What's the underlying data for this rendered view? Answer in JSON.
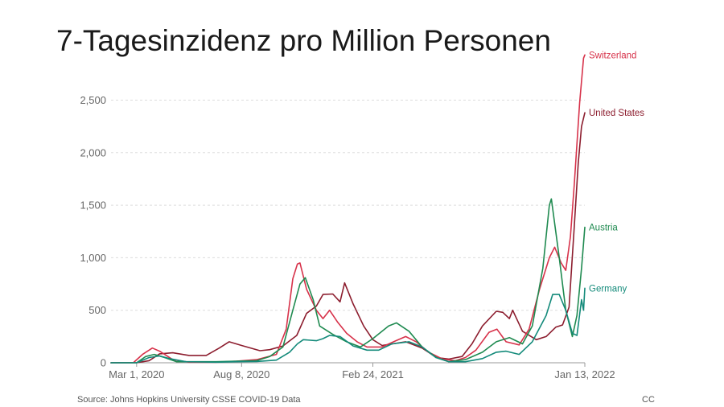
{
  "page": {
    "title": "7-Tagesinzidenz pro Million Personen",
    "source": "Source: Johns Hopkins University CSSE COVID-19 Data",
    "license": "CC"
  },
  "chart_data": {
    "type": "line",
    "title": "7-Tagesinzidenz pro Million Personen",
    "xlabel": "",
    "ylabel": "",
    "x_type": "date",
    "xlim": [
      "2020-01-22",
      "2022-01-13"
    ],
    "ylim": [
      0,
      2900
    ],
    "y_ticks": [
      0,
      500,
      1000,
      1500,
      2000,
      2500
    ],
    "y_tick_labels": [
      "0",
      "500",
      "1,000",
      "1,500",
      "2,000",
      "2,500"
    ],
    "x_ticks": [
      "2020-03-01",
      "2020-08-08",
      "2021-02-24",
      "2022-01-13"
    ],
    "x_tick_labels": [
      "Mar 1, 2020",
      "Aug 8, 2020",
      "Feb 24, 2021",
      "Jan 13, 2022"
    ],
    "grid": "horizontal",
    "legend": "line-end labels",
    "series": [
      {
        "name": "United States",
        "color": "#8c1d2e",
        "points": [
          [
            "2020-01-22",
            0
          ],
          [
            "2020-03-01",
            0
          ],
          [
            "2020-03-20",
            20
          ],
          [
            "2020-04-05",
            85
          ],
          [
            "2020-04-25",
            95
          ],
          [
            "2020-05-20",
            70
          ],
          [
            "2020-06-15",
            70
          ],
          [
            "2020-07-05",
            140
          ],
          [
            "2020-07-20",
            200
          ],
          [
            "2020-08-08",
            165
          ],
          [
            "2020-09-05",
            115
          ],
          [
            "2020-09-20",
            125
          ],
          [
            "2020-10-10",
            160
          ],
          [
            "2020-10-31",
            260
          ],
          [
            "2020-11-15",
            470
          ],
          [
            "2020-11-30",
            540
          ],
          [
            "2020-12-10",
            650
          ],
          [
            "2020-12-25",
            655
          ],
          [
            "2021-01-05",
            580
          ],
          [
            "2021-01-12",
            760
          ],
          [
            "2021-01-25",
            560
          ],
          [
            "2021-02-10",
            350
          ],
          [
            "2021-02-24",
            220
          ],
          [
            "2021-03-10",
            165
          ],
          [
            "2021-04-15",
            200
          ],
          [
            "2021-05-10",
            140
          ],
          [
            "2021-06-01",
            50
          ],
          [
            "2021-06-20",
            35
          ],
          [
            "2021-07-10",
            60
          ],
          [
            "2021-07-25",
            180
          ],
          [
            "2021-08-10",
            350
          ],
          [
            "2021-08-31",
            490
          ],
          [
            "2021-09-10",
            480
          ],
          [
            "2021-09-20",
            420
          ],
          [
            "2021-09-25",
            500
          ],
          [
            "2021-10-10",
            300
          ],
          [
            "2021-10-31",
            220
          ],
          [
            "2021-11-15",
            250
          ],
          [
            "2021-11-30",
            340
          ],
          [
            "2021-12-10",
            360
          ],
          [
            "2021-12-20",
            530
          ],
          [
            "2021-12-28",
            1300
          ],
          [
            "2022-01-03",
            1900
          ],
          [
            "2022-01-08",
            2250
          ],
          [
            "2022-01-13",
            2380
          ]
        ]
      },
      {
        "name": "Switzerland",
        "color": "#d7324a",
        "points": [
          [
            "2020-01-22",
            0
          ],
          [
            "2020-02-25",
            0
          ],
          [
            "2020-03-10",
            80
          ],
          [
            "2020-03-25",
            140
          ],
          [
            "2020-04-05",
            110
          ],
          [
            "2020-04-25",
            30
          ],
          [
            "2020-05-20",
            5
          ],
          [
            "2020-06-30",
            5
          ],
          [
            "2020-07-31",
            15
          ],
          [
            "2020-08-31",
            30
          ],
          [
            "2020-09-30",
            80
          ],
          [
            "2020-10-15",
            320
          ],
          [
            "2020-10-25",
            800
          ],
          [
            "2020-11-01",
            940
          ],
          [
            "2020-11-05",
            950
          ],
          [
            "2020-11-15",
            700
          ],
          [
            "2020-11-30",
            500
          ],
          [
            "2020-12-10",
            420
          ],
          [
            "2020-12-20",
            500
          ],
          [
            "2021-01-01",
            390
          ],
          [
            "2021-01-15",
            280
          ],
          [
            "2021-01-31",
            200
          ],
          [
            "2021-02-15",
            150
          ],
          [
            "2021-03-10",
            150
          ],
          [
            "2021-03-31",
            210
          ],
          [
            "2021-04-15",
            250
          ],
          [
            "2021-05-01",
            200
          ],
          [
            "2021-05-20",
            100
          ],
          [
            "2021-06-10",
            35
          ],
          [
            "2021-06-30",
            20
          ],
          [
            "2021-07-15",
            50
          ],
          [
            "2021-07-31",
            120
          ],
          [
            "2021-08-20",
            290
          ],
          [
            "2021-09-01",
            320
          ],
          [
            "2021-09-15",
            200
          ],
          [
            "2021-10-05",
            170
          ],
          [
            "2021-10-20",
            320
          ],
          [
            "2021-11-05",
            700
          ],
          [
            "2021-11-20",
            1000
          ],
          [
            "2021-11-28",
            1100
          ],
          [
            "2021-12-08",
            950
          ],
          [
            "2021-12-15",
            880
          ],
          [
            "2021-12-22",
            1200
          ],
          [
            "2021-12-28",
            1700
          ],
          [
            "2022-01-05",
            2470
          ],
          [
            "2022-01-11",
            2900
          ],
          [
            "2022-01-13",
            2930
          ]
        ]
      },
      {
        "name": "Austria",
        "color": "#1f8a50",
        "points": [
          [
            "2020-01-22",
            0
          ],
          [
            "2020-03-01",
            0
          ],
          [
            "2020-03-15",
            60
          ],
          [
            "2020-03-28",
            80
          ],
          [
            "2020-04-10",
            55
          ],
          [
            "2020-05-01",
            10
          ],
          [
            "2020-06-30",
            10
          ],
          [
            "2020-07-31",
            15
          ],
          [
            "2020-08-31",
            20
          ],
          [
            "2020-09-20",
            60
          ],
          [
            "2020-10-10",
            150
          ],
          [
            "2020-10-25",
            500
          ],
          [
            "2020-11-05",
            750
          ],
          [
            "2020-11-13",
            810
          ],
          [
            "2020-11-25",
            600
          ],
          [
            "2020-12-05",
            350
          ],
          [
            "2020-12-25",
            270
          ],
          [
            "2021-01-15",
            200
          ],
          [
            "2021-02-05",
            150
          ],
          [
            "2021-02-24",
            230
          ],
          [
            "2021-03-20",
            350
          ],
          [
            "2021-04-01",
            380
          ],
          [
            "2021-04-20",
            300
          ],
          [
            "2021-05-10",
            150
          ],
          [
            "2021-06-01",
            50
          ],
          [
            "2021-06-20",
            10
          ],
          [
            "2021-07-15",
            30
          ],
          [
            "2021-08-10",
            100
          ],
          [
            "2021-08-31",
            200
          ],
          [
            "2021-09-20",
            240
          ],
          [
            "2021-10-10",
            180
          ],
          [
            "2021-10-25",
            350
          ],
          [
            "2021-11-10",
            900
          ],
          [
            "2021-11-20",
            1500
          ],
          [
            "2021-11-23",
            1560
          ],
          [
            "2021-12-05",
            1000
          ],
          [
            "2021-12-15",
            500
          ],
          [
            "2021-12-25",
            250
          ],
          [
            "2022-01-01",
            450
          ],
          [
            "2022-01-08",
            900
          ],
          [
            "2022-01-13",
            1290
          ]
        ]
      },
      {
        "name": "Germany",
        "color": "#138a7a",
        "points": [
          [
            "2020-01-22",
            0
          ],
          [
            "2020-03-01",
            0
          ],
          [
            "2020-03-20",
            50
          ],
          [
            "2020-04-05",
            65
          ],
          [
            "2020-04-20",
            40
          ],
          [
            "2020-05-15",
            10
          ],
          [
            "2020-06-30",
            5
          ],
          [
            "2020-07-31",
            10
          ],
          [
            "2020-08-31",
            12
          ],
          [
            "2020-09-30",
            25
          ],
          [
            "2020-10-20",
            100
          ],
          [
            "2020-11-01",
            180
          ],
          [
            "2020-11-10",
            220
          ],
          [
            "2020-11-30",
            210
          ],
          [
            "2020-12-10",
            230
          ],
          [
            "2020-12-20",
            260
          ],
          [
            "2021-01-05",
            250
          ],
          [
            "2021-01-25",
            160
          ],
          [
            "2021-02-15",
            120
          ],
          [
            "2021-03-05",
            120
          ],
          [
            "2021-03-25",
            180
          ],
          [
            "2021-04-20",
            200
          ],
          [
            "2021-05-10",
            150
          ],
          [
            "2021-05-31",
            50
          ],
          [
            "2021-06-20",
            10
          ],
          [
            "2021-07-15",
            10
          ],
          [
            "2021-08-10",
            40
          ],
          [
            "2021-08-31",
            100
          ],
          [
            "2021-09-15",
            110
          ],
          [
            "2021-10-05",
            80
          ],
          [
            "2021-10-25",
            200
          ],
          [
            "2021-11-15",
            450
          ],
          [
            "2021-11-25",
            650
          ],
          [
            "2021-12-05",
            650
          ],
          [
            "2021-12-15",
            500
          ],
          [
            "2021-12-25",
            280
          ],
          [
            "2022-01-01",
            260
          ],
          [
            "2022-01-08",
            600
          ],
          [
            "2022-01-11",
            500
          ],
          [
            "2022-01-13",
            710
          ]
        ]
      }
    ]
  }
}
